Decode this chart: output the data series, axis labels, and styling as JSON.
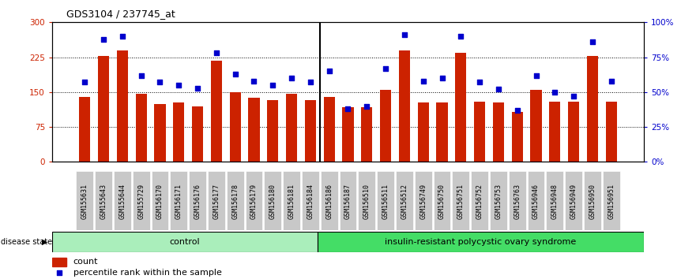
{
  "title": "GDS3104 / 237745_at",
  "samples": [
    "GSM155631",
    "GSM155643",
    "GSM155644",
    "GSM155729",
    "GSM156170",
    "GSM156171",
    "GSM156176",
    "GSM156177",
    "GSM156178",
    "GSM156179",
    "GSM156180",
    "GSM156181",
    "GSM156184",
    "GSM156186",
    "GSM156187",
    "GSM156510",
    "GSM156511",
    "GSM156512",
    "GSM156749",
    "GSM156750",
    "GSM156751",
    "GSM156752",
    "GSM156753",
    "GSM156763",
    "GSM156946",
    "GSM156948",
    "GSM156949",
    "GSM156950",
    "GSM156951"
  ],
  "bar_values": [
    140,
    228,
    240,
    147,
    125,
    127,
    120,
    218,
    150,
    138,
    133,
    147,
    133,
    140,
    118,
    118,
    155,
    240,
    128,
    127,
    235,
    130,
    128,
    108,
    155,
    130,
    130,
    228,
    130
  ],
  "percentile_values": [
    57,
    88,
    90,
    62,
    57,
    55,
    53,
    78,
    63,
    58,
    55,
    60,
    57,
    65,
    38,
    40,
    67,
    91,
    58,
    60,
    90,
    57,
    52,
    37,
    62,
    50,
    47,
    86,
    58
  ],
  "control_count": 13,
  "disease_count": 16,
  "ylim_left": [
    0,
    300
  ],
  "ylim_right": [
    0,
    100
  ],
  "yticks_left": [
    0,
    75,
    150,
    225,
    300
  ],
  "yticks_right": [
    0,
    25,
    50,
    75,
    100
  ],
  "bar_color": "#cc2200",
  "dot_color": "#0000cc",
  "control_color": "#aaeebb",
  "disease_color": "#44dd66",
  "label_color_left": "#cc2200",
  "label_color_right": "#0000cc",
  "control_label": "control",
  "disease_label": "insulin-resistant polycystic ovary syndrome",
  "disease_state_label": "disease state",
  "legend_count": "count",
  "legend_percentile": "percentile rank within the sample",
  "sep_color": "#000000",
  "tick_gray": "#c8c8c8"
}
